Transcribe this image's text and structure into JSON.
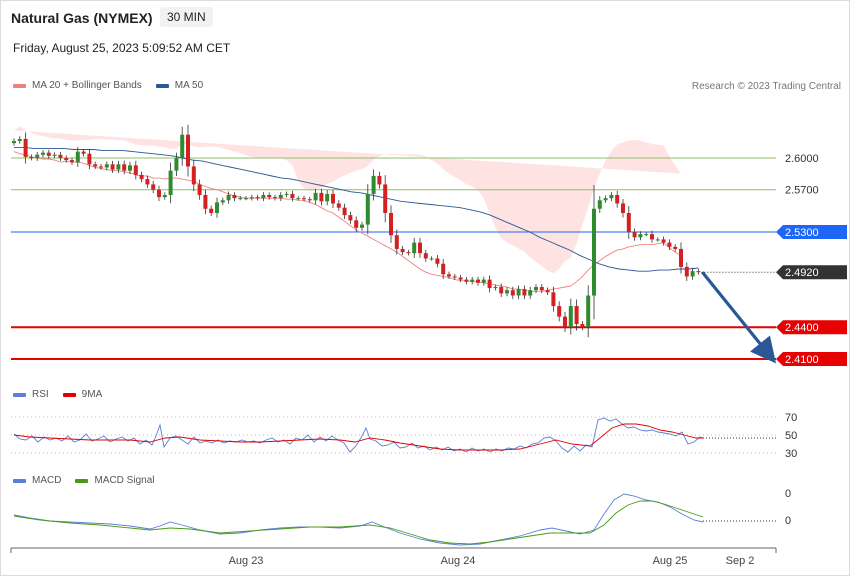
{
  "header": {
    "instrument": "Natural Gas (NYMEX)",
    "timeframe": "30 MIN",
    "datetime": "Friday, August 25, 2023 5:09:52 AM CET",
    "credit": "Research © 2023 Trading Central"
  },
  "legends": {
    "price": [
      {
        "label": "MA 20 + Bollinger Bands",
        "color": "#f08080"
      },
      {
        "label": "MA 50",
        "color": "#2b5797"
      }
    ],
    "rsi": [
      {
        "label": "RSI",
        "color": "#5b7fd6"
      },
      {
        "label": "9MA",
        "color": "#e00000"
      }
    ],
    "macd": [
      {
        "label": "MACD",
        "color": "#5b7fd6"
      },
      {
        "label": "MACD Signal",
        "color": "#4a9a1a"
      }
    ]
  },
  "chart_data": {
    "type": "candlestick",
    "price_range": [
      2.392,
      2.634
    ],
    "levels": [
      {
        "value": 2.6,
        "label": "2.6000",
        "kind": "resistance-minor",
        "color": "#8cc26a"
      },
      {
        "value": 2.57,
        "label": "2.5700",
        "kind": "resistance-minor",
        "color": "#8cc26a"
      },
      {
        "value": 2.53,
        "label": "2.5300",
        "kind": "resistance",
        "color": "#1e66f5"
      },
      {
        "value": 2.492,
        "label": "2.4920",
        "kind": "last-price",
        "color": "#333333"
      },
      {
        "value": 2.44,
        "label": "2.4400",
        "kind": "support",
        "color": "#e60000"
      },
      {
        "value": 2.41,
        "label": "2.4100",
        "kind": "support",
        "color": "#e60000"
      }
    ],
    "forecast_arrow": {
      "from": 2.492,
      "to": 2.41
    },
    "x_ticks": [
      "Aug 23",
      "Aug 24",
      "Aug 25",
      "Sep 2"
    ],
    "close": [
      2.616,
      2.618,
      2.601,
      2.6,
      2.603,
      2.605,
      2.602,
      2.603,
      2.6,
      2.598,
      2.596,
      2.606,
      2.604,
      2.594,
      2.592,
      2.591,
      2.594,
      2.589,
      2.594,
      2.588,
      2.593,
      2.584,
      2.58,
      2.575,
      2.57,
      2.563,
      2.565,
      2.588,
      2.6,
      2.622,
      2.592,
      2.575,
      2.565,
      2.552,
      2.548,
      2.558,
      2.56,
      2.565,
      2.562,
      2.562,
      2.562,
      2.563,
      2.562,
      2.565,
      2.563,
      2.562,
      2.565,
      2.566,
      2.562,
      2.562,
      2.561,
      2.56,
      2.567,
      2.559,
      2.566,
      2.557,
      2.553,
      2.546,
      2.541,
      2.534,
      2.537,
      2.566,
      2.583,
      2.575,
      2.548,
      2.527,
      2.514,
      2.511,
      2.51,
      2.52,
      2.51,
      2.505,
      2.505,
      2.5,
      2.49,
      2.488,
      2.487,
      2.485,
      2.483,
      2.485,
      2.482,
      2.485,
      2.477,
      2.478,
      2.472,
      2.475,
      2.47,
      2.476,
      2.47,
      2.475,
      2.478,
      2.475,
      2.473,
      2.46,
      2.45,
      2.44,
      2.46,
      2.443,
      2.44,
      2.47,
      2.552,
      2.56,
      2.562,
      2.565,
      2.557,
      2.548,
      2.53,
      2.525,
      2.528,
      2.528,
      2.523,
      2.523,
      2.52,
      2.516,
      2.514,
      2.497,
      2.488,
      2.493,
      2.492
    ],
    "ma20": [
      2.606,
      2.604,
      2.603,
      2.601,
      2.6,
      2.599,
      2.599,
      2.598,
      2.596,
      2.597,
      2.596,
      2.596,
      2.595,
      2.593,
      2.591,
      2.59,
      2.589,
      2.588,
      2.588,
      2.587,
      2.586,
      2.584,
      2.583,
      2.583,
      2.581,
      2.581,
      2.58,
      2.581,
      2.581,
      2.58,
      2.579,
      2.578,
      2.575,
      2.573,
      2.571,
      2.57,
      2.568,
      2.566,
      2.564,
      2.563,
      2.562,
      2.562,
      2.562,
      2.562,
      2.562,
      2.562,
      2.562,
      2.561,
      2.561,
      2.56,
      2.56,
      2.558,
      2.556,
      2.553,
      2.55,
      2.548,
      2.544,
      2.54,
      2.536,
      2.532,
      2.529,
      2.526,
      2.523,
      2.52,
      2.517,
      2.514,
      2.511,
      2.507,
      2.503,
      2.499,
      2.495,
      2.492,
      2.49,
      2.489,
      2.488,
      2.487,
      2.485,
      2.484,
      2.484,
      2.483,
      2.483,
      2.482,
      2.481,
      2.48,
      2.479,
      2.478,
      2.476,
      2.476,
      2.475,
      2.474,
      2.474,
      2.474,
      2.475,
      2.476,
      2.477,
      2.478,
      2.479,
      2.483,
      2.488,
      2.494,
      2.499,
      2.503,
      2.507,
      2.51,
      2.513,
      2.514,
      2.516,
      2.517,
      2.518,
      2.518,
      2.518,
      2.519,
      2.52,
      2.515,
      2.511,
      2.508
    ],
    "ma50": [
      2.61,
      2.61,
      2.609,
      2.609,
      2.609,
      2.609,
      2.608,
      2.608,
      2.608,
      2.607,
      2.607,
      2.607,
      2.606,
      2.605,
      2.604,
      2.603,
      2.602,
      2.6,
      2.598,
      2.597,
      2.595,
      2.593,
      2.591,
      2.589,
      2.587,
      2.585,
      2.583,
      2.581,
      2.58,
      2.578,
      2.576,
      2.574,
      2.572,
      2.57,
      2.568,
      2.567,
      2.565,
      2.563,
      2.561,
      2.559,
      2.558,
      2.557,
      2.556,
      2.555,
      2.554,
      2.553,
      2.551,
      2.549,
      2.546,
      2.542,
      2.538,
      2.534,
      2.53,
      2.525,
      2.521,
      2.517,
      2.513,
      2.508,
      2.504,
      2.5,
      2.497,
      2.495,
      2.494,
      2.493,
      2.493,
      2.494,
      2.494,
      2.495,
      2.495,
      2.496
    ]
  }
}
